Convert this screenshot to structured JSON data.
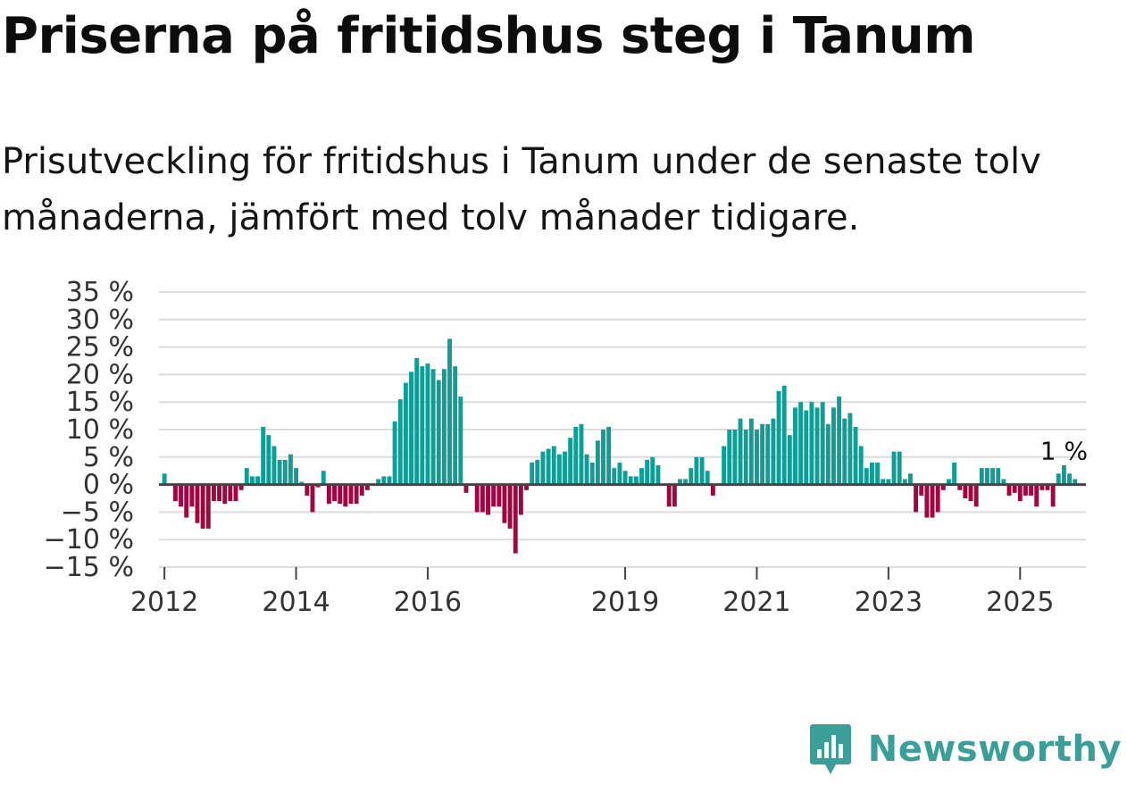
{
  "header": {
    "title": "Priserna på fritidshus steg i Tanum",
    "subtitle": "Prisutveckling för fritidshus i Tanum under de senaste tolv månaderna, jämfört med tolv månader tidigare."
  },
  "brand": {
    "name": "Newsworthy",
    "icon": "newsworthy-logo-icon",
    "color": "#3a9e99"
  },
  "colors": {
    "positive": "#0f9e95",
    "negative": "#a0063f",
    "grid": "#dcdcdc",
    "zero_line": "#444444"
  },
  "chart_data": {
    "type": "bar",
    "x_start": "2011-12",
    "x_end": "2026-01",
    "bar_start": "2012-01",
    "xticks": [
      "2012",
      "2014",
      "2016",
      "2019",
      "2021",
      "2023",
      "2025"
    ],
    "ylim": [
      -15,
      35
    ],
    "yticks": [
      "35 %",
      "30 %",
      "25 %",
      "20 %",
      "15 %",
      "10 %",
      "5 %",
      "0 %",
      "−5 %",
      "−10 %",
      "−15 %"
    ],
    "grid": true,
    "annotation": {
      "text": "1 %",
      "date": "2025-09",
      "value": 1
    },
    "values": [
      2,
      0,
      -3,
      -4,
      -6,
      -4,
      -7,
      -8,
      -8,
      -3,
      -3,
      -3.5,
      -3,
      -3,
      -1,
      3,
      1.5,
      1.5,
      10.5,
      9,
      7,
      4.5,
      4.5,
      5.5,
      3,
      0.5,
      -2,
      -5,
      -0.5,
      2.5,
      -3.5,
      -3,
      -3.5,
      -4,
      -3.5,
      -3.5,
      -2,
      -1,
      0,
      1,
      1.5,
      1.5,
      11.5,
      15.5,
      18.5,
      20.5,
      23,
      21.5,
      22,
      21,
      19,
      21,
      26.5,
      21.5,
      16,
      -1.5,
      0,
      -5,
      -5,
      -5.5,
      -4,
      -4,
      -7,
      -8,
      -12.5,
      -5.5,
      -1,
      4,
      4.5,
      6,
      6.5,
      7,
      5.5,
      6,
      8.5,
      10.5,
      11,
      5.5,
      4,
      8,
      10,
      10.5,
      3,
      4,
      2.5,
      1.5,
      1.5,
      3,
      4.5,
      5,
      3.5,
      0,
      -4,
      -4,
      1,
      1,
      3,
      5,
      5,
      2.5,
      -2,
      0,
      7,
      10,
      10,
      12,
      10,
      12,
      10,
      11,
      11,
      12,
      17,
      18,
      9,
      14,
      15,
      13.5,
      15,
      14,
      15,
      11,
      14,
      16,
      12,
      13,
      10.5,
      7,
      3,
      4,
      4,
      1,
      1,
      6,
      6,
      1,
      2,
      -5,
      -2,
      -6,
      -6,
      -5,
      -1,
      1,
      4,
      -1,
      -2.5,
      -3,
      -4,
      3,
      3,
      3,
      3,
      1,
      -2,
      -1.5,
      -3,
      -2,
      -2,
      -4,
      -1,
      -1,
      -4,
      2,
      3.5,
      2,
      1
    ]
  }
}
